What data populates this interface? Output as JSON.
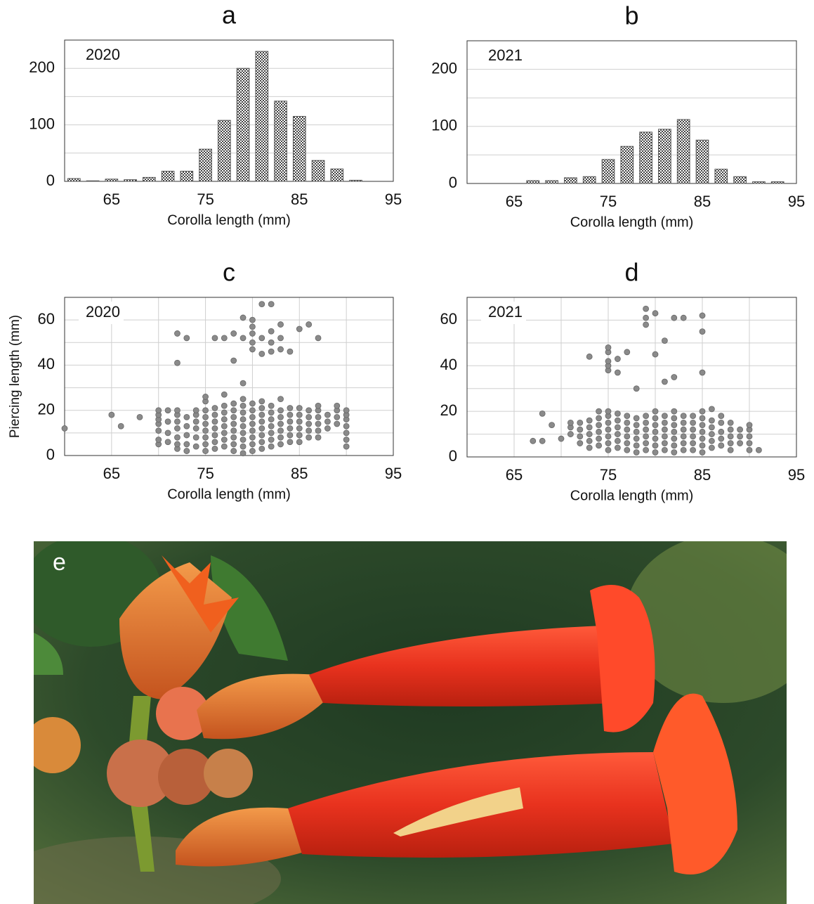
{
  "chart_data": [
    {
      "type": "histogram",
      "title": "a",
      "annotation": "2020",
      "xlabel": "Corolla length (mm)",
      "bins": [
        60,
        62,
        64,
        66,
        68,
        70,
        72,
        74,
        76,
        78,
        80,
        82,
        84,
        86,
        88,
        90,
        92,
        94
      ],
      "values": [
        5,
        1,
        4,
        3,
        7,
        18,
        18,
        57,
        108,
        200,
        230,
        142,
        115,
        37,
        22,
        2,
        0
      ],
      "color": "#555555",
      "xlim": [
        60,
        95
      ],
      "xticks": [
        65,
        75,
        85,
        95
      ],
      "ylim": [
        0,
        250
      ],
      "yticks": [
        0,
        100,
        200
      ],
      "minor_yticks": [
        50,
        150
      ],
      "grid": true
    },
    {
      "type": "histogram",
      "title": "b",
      "annotation": "2021",
      "xlabel": "Corolla length (mm)",
      "bins": [
        60,
        62,
        64,
        66,
        68,
        70,
        72,
        74,
        76,
        78,
        80,
        82,
        84,
        86,
        88,
        90,
        92,
        94
      ],
      "values": [
        0,
        0,
        0,
        5,
        5,
        10,
        12,
        42,
        65,
        90,
        95,
        112,
        76,
        25,
        12,
        3,
        3
      ],
      "color": "#555555",
      "xlim": [
        60,
        95
      ],
      "xticks": [
        65,
        75,
        85,
        95
      ],
      "ylim": [
        0,
        250
      ],
      "yticks": [
        0,
        100,
        200
      ],
      "minor_yticks": [
        50,
        150
      ],
      "grid": true
    },
    {
      "type": "scatter",
      "title": "c",
      "annotation": "2020",
      "xlabel": "Corolla length (mm)",
      "ylabel": "Piercing length (mm)",
      "color": "#8a8a8a",
      "x": [
        60,
        65,
        66,
        68,
        70,
        70,
        70,
        70,
        70,
        70,
        70,
        71,
        71,
        71,
        71,
        72,
        72,
        72,
        72,
        72,
        72,
        72,
        72,
        72,
        73,
        73,
        73,
        73,
        73,
        73,
        74,
        74,
        74,
        74,
        74,
        74,
        75,
        75,
        75,
        75,
        75,
        75,
        75,
        75,
        75,
        76,
        76,
        76,
        76,
        76,
        76,
        76,
        76,
        77,
        77,
        77,
        77,
        77,
        77,
        77,
        77,
        77,
        78,
        78,
        78,
        78,
        78,
        78,
        78,
        78,
        78,
        78,
        79,
        79,
        79,
        79,
        79,
        79,
        79,
        79,
        79,
        79,
        79,
        79,
        80,
        80,
        80,
        80,
        80,
        80,
        80,
        80,
        80,
        80,
        80,
        80,
        80,
        81,
        81,
        81,
        81,
        81,
        81,
        81,
        81,
        81,
        81,
        81,
        82,
        82,
        82,
        82,
        82,
        82,
        82,
        82,
        82,
        82,
        82,
        83,
        83,
        83,
        83,
        83,
        83,
        83,
        83,
        83,
        83,
        84,
        84,
        84,
        84,
        84,
        84,
        84,
        85,
        85,
        85,
        85,
        85,
        85,
        85,
        86,
        86,
        86,
        86,
        86,
        86,
        87,
        87,
        87,
        87,
        87,
        87,
        87,
        88,
        88,
        88,
        89,
        89,
        89,
        89,
        90,
        90,
        90,
        90,
        90,
        90,
        90
      ],
      "values": [
        12,
        18,
        13,
        17,
        5,
        7,
        11,
        14,
        16,
        18,
        20,
        6,
        10,
        15,
        20,
        3,
        5,
        8,
        12,
        15,
        18,
        20,
        41,
        54,
        2,
        5,
        9,
        13,
        17,
        52,
        4,
        8,
        12,
        15,
        18,
        20,
        2,
        5,
        8,
        11,
        14,
        17,
        20,
        24,
        26,
        3,
        6,
        9,
        12,
        15,
        18,
        21,
        52,
        4,
        7,
        10,
        13,
        16,
        19,
        22,
        27,
        52,
        2,
        5,
        8,
        11,
        14,
        17,
        20,
        23,
        42,
        54,
        1,
        4,
        7,
        10,
        13,
        16,
        19,
        22,
        25,
        32,
        52,
        61,
        2,
        5,
        8,
        11,
        14,
        17,
        20,
        23,
        47,
        50,
        54,
        57,
        60,
        3,
        6,
        9,
        12,
        15,
        18,
        21,
        24,
        45,
        52,
        67,
        4,
        7,
        10,
        13,
        16,
        19,
        22,
        46,
        50,
        55,
        67,
        5,
        8,
        11,
        14,
        17,
        20,
        25,
        47,
        52,
        58,
        6,
        9,
        12,
        15,
        18,
        21,
        46,
        6,
        9,
        12,
        15,
        18,
        21,
        56,
        8,
        11,
        14,
        17,
        20,
        58,
        8,
        11,
        14,
        17,
        20,
        22,
        52,
        12,
        15,
        18,
        14,
        17,
        20,
        22,
        4,
        7,
        10,
        13,
        16,
        18,
        20
      ],
      "xlim": [
        60,
        95
      ],
      "xticks": [
        65,
        75,
        85,
        95
      ],
      "minor_xticks": [
        70,
        80,
        90
      ],
      "ylim": [
        0,
        70
      ],
      "yticks": [
        0,
        20,
        40,
        60
      ],
      "minor_yticks": [
        10,
        30,
        50
      ],
      "grid": true
    },
    {
      "type": "scatter",
      "title": "d",
      "annotation": "2021",
      "xlabel": "Corolla length (mm)",
      "color": "#8a8a8a",
      "x": [
        67,
        68,
        68,
        69,
        70,
        71,
        71,
        71,
        72,
        72,
        72,
        72,
        73,
        73,
        73,
        73,
        73,
        73,
        74,
        74,
        74,
        74,
        74,
        74,
        75,
        75,
        75,
        75,
        75,
        75,
        75,
        75,
        75,
        75,
        75,
        75,
        76,
        76,
        76,
        76,
        76,
        76,
        76,
        76,
        77,
        77,
        77,
        77,
        77,
        77,
        77,
        78,
        78,
        78,
        78,
        78,
        78,
        78,
        79,
        79,
        79,
        79,
        79,
        79,
        79,
        79,
        79,
        80,
        80,
        80,
        80,
        80,
        80,
        80,
        80,
        80,
        81,
        81,
        81,
        81,
        81,
        81,
        81,
        81,
        82,
        82,
        82,
        82,
        82,
        82,
        82,
        82,
        82,
        83,
        83,
        83,
        83,
        83,
        83,
        83,
        84,
        84,
        84,
        84,
        84,
        84,
        85,
        85,
        85,
        85,
        85,
        85,
        85,
        85,
        85,
        85,
        86,
        86,
        86,
        86,
        86,
        86,
        87,
        87,
        87,
        87,
        87,
        88,
        88,
        88,
        88,
        88,
        89,
        89,
        89,
        90,
        90,
        90,
        90,
        90,
        91
      ],
      "values": [
        7,
        7,
        19,
        14,
        8,
        10,
        13,
        15,
        6,
        9,
        12,
        15,
        4,
        7,
        10,
        13,
        16,
        44,
        5,
        8,
        11,
        14,
        17,
        20,
        3,
        6,
        9,
        12,
        15,
        18,
        20,
        38,
        40,
        42,
        46,
        48,
        4,
        7,
        10,
        13,
        16,
        19,
        37,
        43,
        3,
        6,
        9,
        12,
        15,
        18,
        46,
        2,
        5,
        8,
        11,
        14,
        17,
        30,
        3,
        6,
        9,
        12,
        15,
        18,
        58,
        61,
        65,
        2,
        5,
        8,
        11,
        14,
        17,
        20,
        45,
        63,
        3,
        6,
        9,
        12,
        15,
        18,
        33,
        51,
        2,
        5,
        8,
        11,
        14,
        17,
        20,
        35,
        61,
        3,
        6,
        9,
        12,
        15,
        18,
        61,
        3,
        6,
        9,
        12,
        15,
        18,
        2,
        5,
        8,
        11,
        14,
        17,
        20,
        37,
        55,
        62,
        4,
        7,
        10,
        13,
        16,
        21,
        5,
        8,
        11,
        15,
        18,
        3,
        6,
        9,
        12,
        15,
        6,
        9,
        12,
        3,
        6,
        9,
        12,
        14,
        3
      ],
      "xlim": [
        60,
        95
      ],
      "xticks": [
        65,
        75,
        85,
        95
      ],
      "minor_xticks": [
        70,
        80,
        90
      ],
      "ylim": [
        0,
        70
      ],
      "yticks": [
        0,
        20,
        40,
        60
      ],
      "minor_yticks": [
        10,
        30,
        50
      ],
      "grid": true
    }
  ],
  "photo": {
    "label": "e"
  }
}
